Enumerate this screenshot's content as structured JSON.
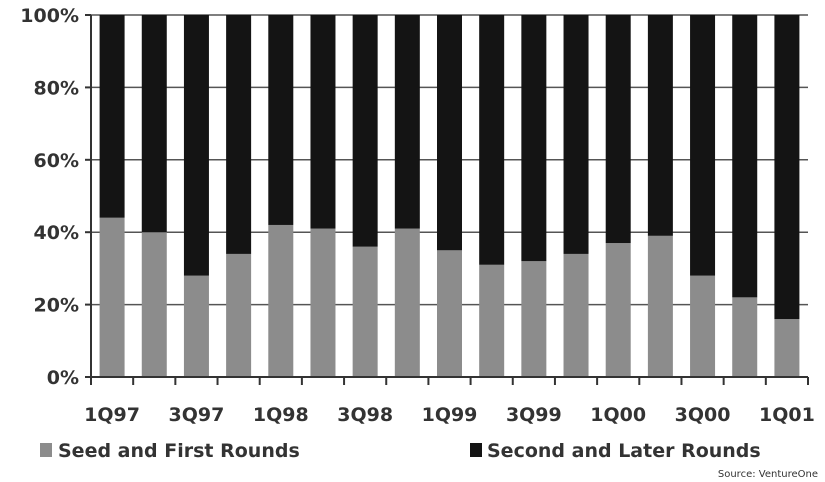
{
  "chart_data": {
    "type": "bar",
    "stacked": true,
    "percent": true,
    "categories": [
      "1Q97",
      "2Q97",
      "3Q97",
      "4Q97",
      "1Q98",
      "2Q98",
      "3Q98",
      "4Q98",
      "1Q99",
      "2Q99",
      "3Q99",
      "4Q99",
      "1Q00",
      "2Q00",
      "3Q00",
      "4Q00",
      "1Q01"
    ],
    "x_tick_labels": [
      "1Q97",
      "3Q97",
      "1Q98",
      "3Q98",
      "1Q99",
      "3Q99",
      "1Q00",
      "3Q00",
      "1Q01"
    ],
    "series": [
      {
        "name": "Seed and First Rounds",
        "color": "#8c8c8c",
        "values": [
          44,
          40,
          28,
          34,
          42,
          41,
          36,
          41,
          35,
          31,
          32,
          34,
          37,
          39,
          28,
          22,
          16
        ]
      },
      {
        "name": "Second and Later Rounds",
        "color": "#141414",
        "values": [
          56,
          60,
          72,
          66,
          58,
          59,
          64,
          59,
          65,
          69,
          68,
          66,
          63,
          61,
          72,
          78,
          84
        ]
      }
    ],
    "y_tick_labels": [
      "0%",
      "20%",
      "40%",
      "60%",
      "80%",
      "100%"
    ],
    "ylim": [
      0,
      100
    ],
    "grid": true,
    "legend_position": "bottom",
    "title": "",
    "xlabel": "",
    "ylabel": "",
    "source": "Source: VentureOne"
  }
}
